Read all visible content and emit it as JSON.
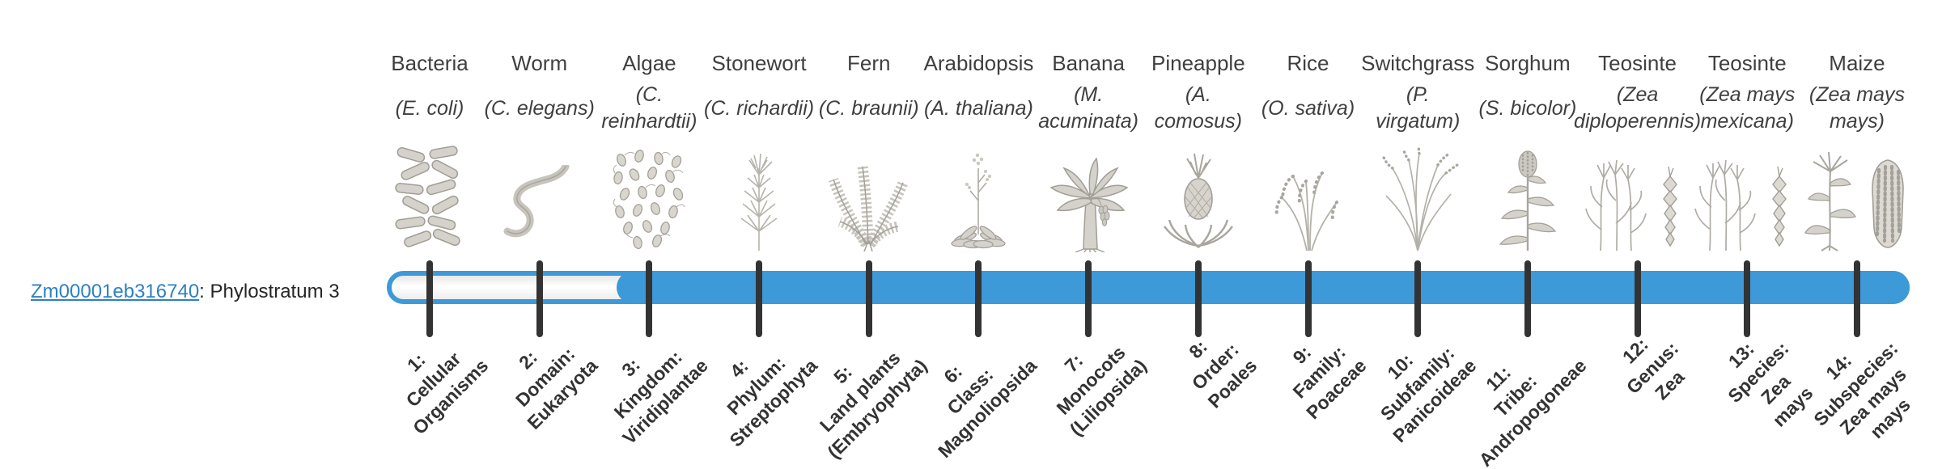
{
  "gene": {
    "id": "Zm00001eb316740",
    "suffix": ": Phylostratum 3",
    "phylostratum": 3
  },
  "colors": {
    "bar_fill": "#3d99d8",
    "bar_track_border": "#3d99d8",
    "tick": "#333333",
    "link": "#2e81c4",
    "label_text": "#3f3f3f",
    "axis_label_text": "#333333"
  },
  "organisms": [
    {
      "name": "Bacteria",
      "latin_lines": [
        "(E. coli)"
      ],
      "icon": "bacteria-icon"
    },
    {
      "name": "Worm",
      "latin_lines": [
        "(C. elegans)"
      ],
      "icon": "worm-icon"
    },
    {
      "name": "Algae",
      "latin_lines": [
        "(C.",
        "reinhardtii)"
      ],
      "icon": "algae-icon"
    },
    {
      "name": "Stonewort",
      "latin_lines": [
        "(C. richardii)"
      ],
      "icon": "stonewort-icon"
    },
    {
      "name": "Fern",
      "latin_lines": [
        "(C. braunii)"
      ],
      "icon": "fern-icon"
    },
    {
      "name": "Arabidopsis",
      "latin_lines": [
        "(A. thaliana)"
      ],
      "icon": "arabidopsis-icon"
    },
    {
      "name": "Banana",
      "latin_lines": [
        "(M.",
        "acuminata)"
      ],
      "icon": "banana-icon"
    },
    {
      "name": "Pineapple",
      "latin_lines": [
        "(A.",
        "comosus)"
      ],
      "icon": "pineapple-icon"
    },
    {
      "name": "Rice",
      "latin_lines": [
        "(O. sativa)"
      ],
      "icon": "rice-icon"
    },
    {
      "name": "Switchgrass",
      "latin_lines": [
        "(P.",
        "virgatum)"
      ],
      "icon": "switchgrass-icon"
    },
    {
      "name": "Sorghum",
      "latin_lines": [
        "(S. bicolor)"
      ],
      "icon": "sorghum-icon"
    },
    {
      "name": "Teosinte",
      "latin_lines": [
        "(Zea",
        "diploperennis)"
      ],
      "icon": "teosinte-icon"
    },
    {
      "name": "Teosinte",
      "latin_lines": [
        "(Zea mays",
        "mexicana)"
      ],
      "icon": "teosinte-icon"
    },
    {
      "name": "Maize",
      "latin_lines": [
        "(Zea mays",
        "mays)"
      ],
      "icon": "maize-icon"
    }
  ],
  "phylostrata": [
    {
      "lines": [
        "1:",
        "Cellular",
        "Organisms"
      ]
    },
    {
      "lines": [
        "2:",
        "Domain:",
        "Eukaryota"
      ]
    },
    {
      "lines": [
        "3:",
        "Kingdom:",
        "Viridiplantae"
      ]
    },
    {
      "lines": [
        "4:",
        "Phylum:",
        "Streptophyta"
      ]
    },
    {
      "lines": [
        "5:",
        "Land plants",
        "(Embryophyta)"
      ]
    },
    {
      "lines": [
        "6:",
        "Class:",
        "Magnoliopsida"
      ]
    },
    {
      "lines": [
        "7:",
        "Monocots",
        "(Liliopsida)"
      ]
    },
    {
      "lines": [
        "8:",
        "Order:",
        "Poales"
      ]
    },
    {
      "lines": [
        "9:",
        "Family:",
        "Poaceae"
      ]
    },
    {
      "lines": [
        "10:",
        "Subfamily:",
        "Panicoideae"
      ]
    },
    {
      "lines": [
        "11:",
        "Tribe:",
        "Andropogoneae"
      ]
    },
    {
      "lines": [
        "12:",
        "Genus:",
        "Zea"
      ]
    },
    {
      "lines": [
        "13:",
        "Species:",
        "Zea",
        "mays"
      ]
    },
    {
      "lines": [
        "14:",
        "Subspecies:",
        "Zea mays",
        "mays"
      ]
    }
  ]
}
